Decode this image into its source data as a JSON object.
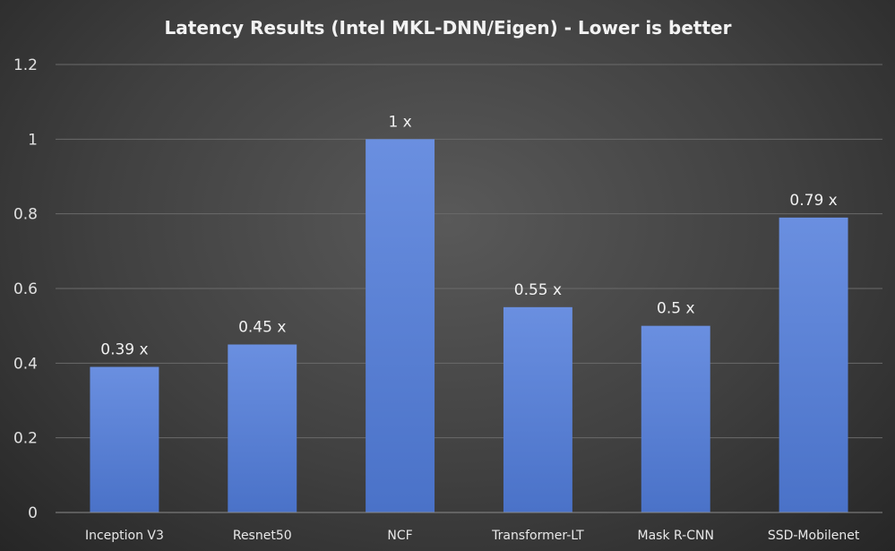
{
  "chart_data": {
    "type": "bar",
    "title": "Latency Results (Intel MKL-DNN/Eigen) - Lower is better",
    "categories": [
      "Inception V3",
      "Resnet50",
      "NCF",
      "Transformer-LT",
      "Mask R-CNN",
      "SSD-Mobilenet"
    ],
    "values": [
      0.39,
      0.45,
      1,
      0.55,
      0.5,
      0.79
    ],
    "data_labels": [
      "0.39 x",
      "0.45 x",
      "1 x",
      "0.55 x",
      "0.5 x",
      "0.79 x"
    ],
    "ylim": [
      0,
      1.2
    ],
    "yticks": [
      "0",
      "0.2",
      "0.4",
      "0.6",
      "0.8",
      "1",
      "1.2"
    ],
    "grid": true,
    "legend": "none",
    "bar_color": "#4a72c8",
    "bar_color_top": "#6a8fe0"
  }
}
